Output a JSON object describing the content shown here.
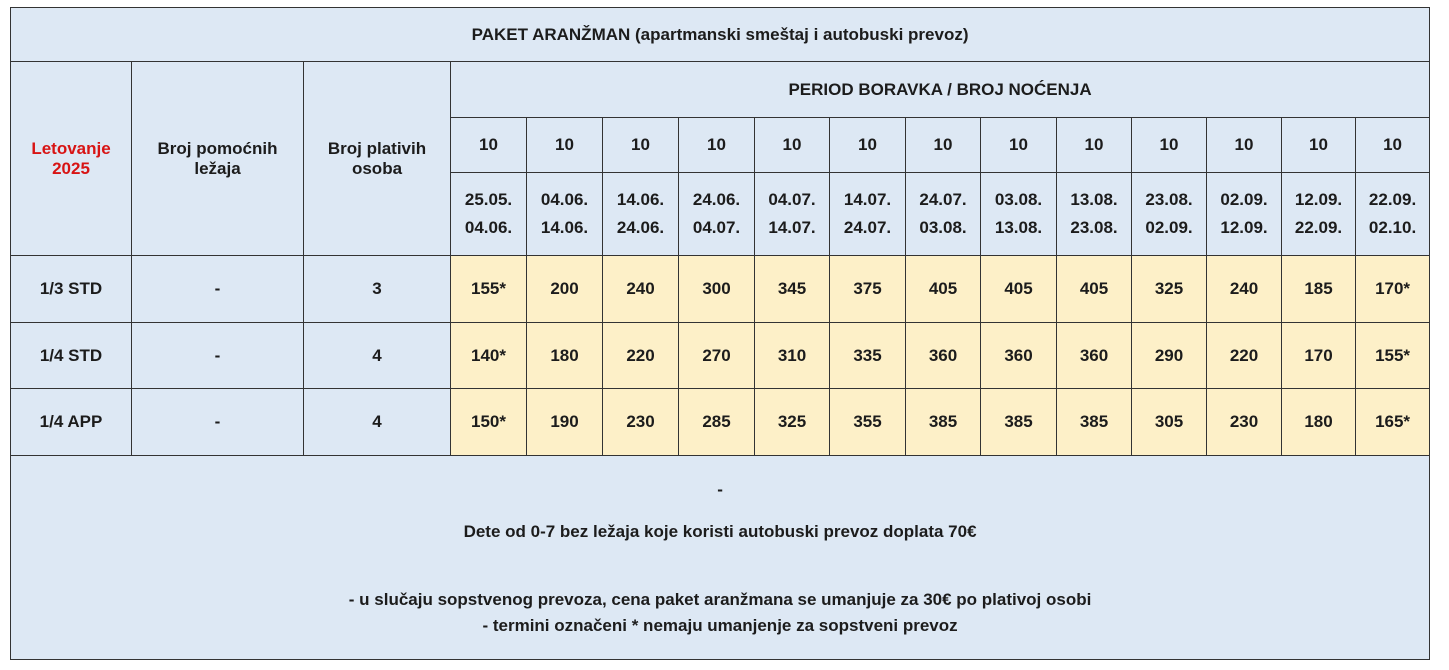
{
  "title": "PAKET ARANŽMAN (apartmanski smeštaj i autobuski prevoz)",
  "headers": {
    "season_line1": "Letovanje",
    "season_line2": "2025",
    "extra_beds_line1": "Broj pomoćnih",
    "extra_beds_line2": "ležaja",
    "paying_line1": "Broj plativih",
    "paying_line2": "osoba",
    "period": "PERIOD BORAVKA / BROJ NOĆENJA"
  },
  "periods": [
    {
      "nights": "10",
      "from": "25.05.",
      "to": "04.06."
    },
    {
      "nights": "10",
      "from": "04.06.",
      "to": "14.06."
    },
    {
      "nights": "10",
      "from": "14.06.",
      "to": "24.06."
    },
    {
      "nights": "10",
      "from": "24.06.",
      "to": "04.07."
    },
    {
      "nights": "10",
      "from": "04.07.",
      "to": "14.07."
    },
    {
      "nights": "10",
      "from": "14.07.",
      "to": "24.07."
    },
    {
      "nights": "10",
      "from": "24.07.",
      "to": "03.08."
    },
    {
      "nights": "10",
      "from": "03.08.",
      "to": "13.08."
    },
    {
      "nights": "10",
      "from": "13.08.",
      "to": "23.08."
    },
    {
      "nights": "10",
      "from": "23.08.",
      "to": "02.09."
    },
    {
      "nights": "10",
      "from": "02.09.",
      "to": "12.09."
    },
    {
      "nights": "10",
      "from": "12.09.",
      "to": "22.09."
    },
    {
      "nights": "10",
      "from": "22.09.",
      "to": "02.10."
    }
  ],
  "rows": [
    {
      "type": "1/3 STD",
      "extra_beds": "-",
      "paying": "3",
      "prices": [
        "155*",
        "200",
        "240",
        "300",
        "345",
        "375",
        "405",
        "405",
        "405",
        "325",
        "240",
        "185",
        "170*"
      ]
    },
    {
      "type": "1/4 STD",
      "extra_beds": "-",
      "paying": "4",
      "prices": [
        "140*",
        "180",
        "220",
        "270",
        "310",
        "335",
        "360",
        "360",
        "360",
        "290",
        "220",
        "170",
        "155*"
      ]
    },
    {
      "type": "1/4 APP",
      "extra_beds": "-",
      "paying": "4",
      "prices": [
        "150*",
        "190",
        "230",
        "285",
        "325",
        "355",
        "385",
        "385",
        "385",
        "305",
        "230",
        "180",
        "165*"
      ]
    }
  ],
  "footer": {
    "dash": "-",
    "child_note": "Dete od 0-7 bez ležaja koje koristi autobuski prevoz doplata 70€",
    "own_transport_note": "- u slučaju sopstvenog prevoza, cena paket aranžmana se umanjuje za 30€ po plativoj osobi",
    "asterisk_note": "- termini označeni * nemaju umanjenje za sopstveni prevoz"
  },
  "colors": {
    "header_bg": "#dde8f4",
    "price_bg": "#fdf0c8",
    "season_text": "#d81414",
    "border": "#333333"
  }
}
